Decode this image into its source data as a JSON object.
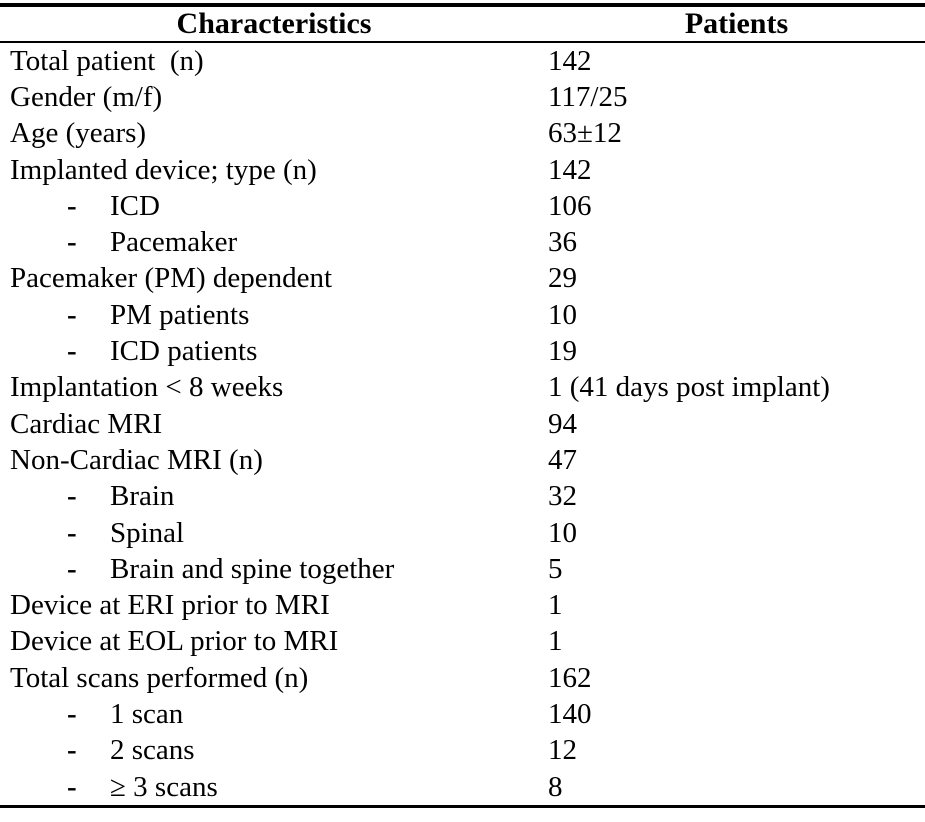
{
  "page": {
    "background_color": "#ffffff",
    "text_color": "#000000",
    "rule_color": "#000000"
  },
  "table": {
    "headers": {
      "characteristics": "Characteristics",
      "patients": "Patients"
    },
    "bullet": "-",
    "rows": [
      {
        "label": "Total patient  (n)",
        "value": "142",
        "indent": false
      },
      {
        "label": "Gender (m/f)",
        "value": "117/25",
        "indent": false
      },
      {
        "label": "Age (years)",
        "value": "63±12",
        "indent": false
      },
      {
        "label": "Implanted device; type (n)",
        "value": "142",
        "indent": false
      },
      {
        "label": "ICD",
        "value": "106",
        "indent": true
      },
      {
        "label": "Pacemaker",
        "value": "36",
        "indent": true
      },
      {
        "label": "Pacemaker (PM) dependent",
        "value": "29",
        "indent": false
      },
      {
        "label": "PM patients",
        "value": "10",
        "indent": true
      },
      {
        "label": "ICD patients",
        "value": "19",
        "indent": true
      },
      {
        "label": "Implantation < 8 weeks",
        "value": "1 (41 days post implant)",
        "indent": false
      },
      {
        "label": "Cardiac MRI",
        "value": "94",
        "indent": false
      },
      {
        "label": "Non-Cardiac MRI (n)",
        "value": "47",
        "indent": false
      },
      {
        "label": "Brain",
        "value": "32",
        "indent": true
      },
      {
        "label": "Spinal",
        "value": "10",
        "indent": true
      },
      {
        "label": "Brain and spine together",
        "value": "5",
        "indent": true
      },
      {
        "label": "Device at ERI prior to MRI",
        "value": "1",
        "indent": false
      },
      {
        "label": "Device at EOL prior to MRI",
        "value": "1",
        "indent": false
      },
      {
        "label": "Total scans performed (n)",
        "value": "162",
        "indent": false
      },
      {
        "label": "1 scan",
        "value": "140",
        "indent": true
      },
      {
        "label": "2 scans",
        "value": "12",
        "indent": true
      },
      {
        "label": "≥ 3 scans",
        "value": "8",
        "indent": true
      }
    ]
  }
}
